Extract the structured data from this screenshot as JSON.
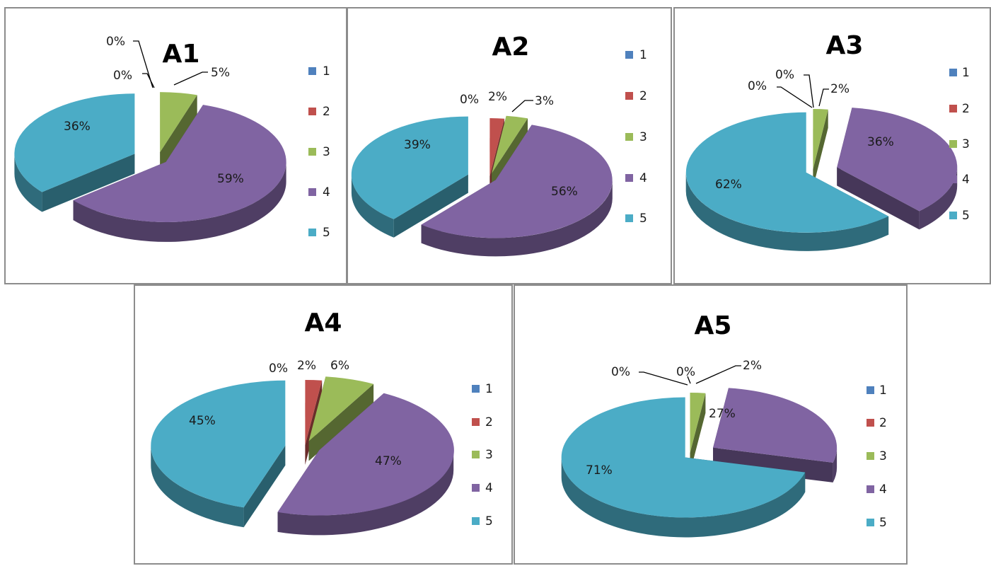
{
  "colors": {
    "1": "#4f81bd",
    "2": "#c0504d",
    "3": "#9bbb59",
    "4": "#8064a2",
    "5": "#4bacc6"
  },
  "legend_labels": [
    "1",
    "2",
    "3",
    "4",
    "5"
  ],
  "chart_data": [
    {
      "type": "pie",
      "title": "A1",
      "categories": [
        "1",
        "2",
        "3",
        "4",
        "5"
      ],
      "values": [
        0,
        0,
        5,
        59,
        36
      ],
      "data_labels": [
        "0%",
        "0%",
        "5%",
        "59%",
        "36%"
      ]
    },
    {
      "type": "pie",
      "title": "A2",
      "categories": [
        "1",
        "2",
        "3",
        "4",
        "5"
      ],
      "values": [
        0,
        2,
        3,
        56,
        39
      ],
      "data_labels": [
        "0%",
        "2%",
        "3%",
        "56%",
        "39%"
      ]
    },
    {
      "type": "pie",
      "title": "A3",
      "categories": [
        "1",
        "2",
        "3",
        "4",
        "5"
      ],
      "values": [
        0,
        0,
        2,
        36,
        62
      ],
      "data_labels": [
        "0%",
        "0%",
        "2%",
        "36%",
        "62%"
      ]
    },
    {
      "type": "pie",
      "title": "A4",
      "categories": [
        "1",
        "2",
        "3",
        "4",
        "5"
      ],
      "values": [
        0,
        2,
        6,
        47,
        45
      ],
      "data_labels": [
        "0%",
        "2%",
        "6%",
        "47%",
        "45%"
      ]
    },
    {
      "type": "pie",
      "title": "A5",
      "categories": [
        "1",
        "2",
        "3",
        "4",
        "5"
      ],
      "values": [
        0,
        0,
        2,
        27,
        71
      ],
      "data_labels": [
        "0%",
        "0%",
        "2%",
        "27%",
        "71%"
      ]
    }
  ]
}
